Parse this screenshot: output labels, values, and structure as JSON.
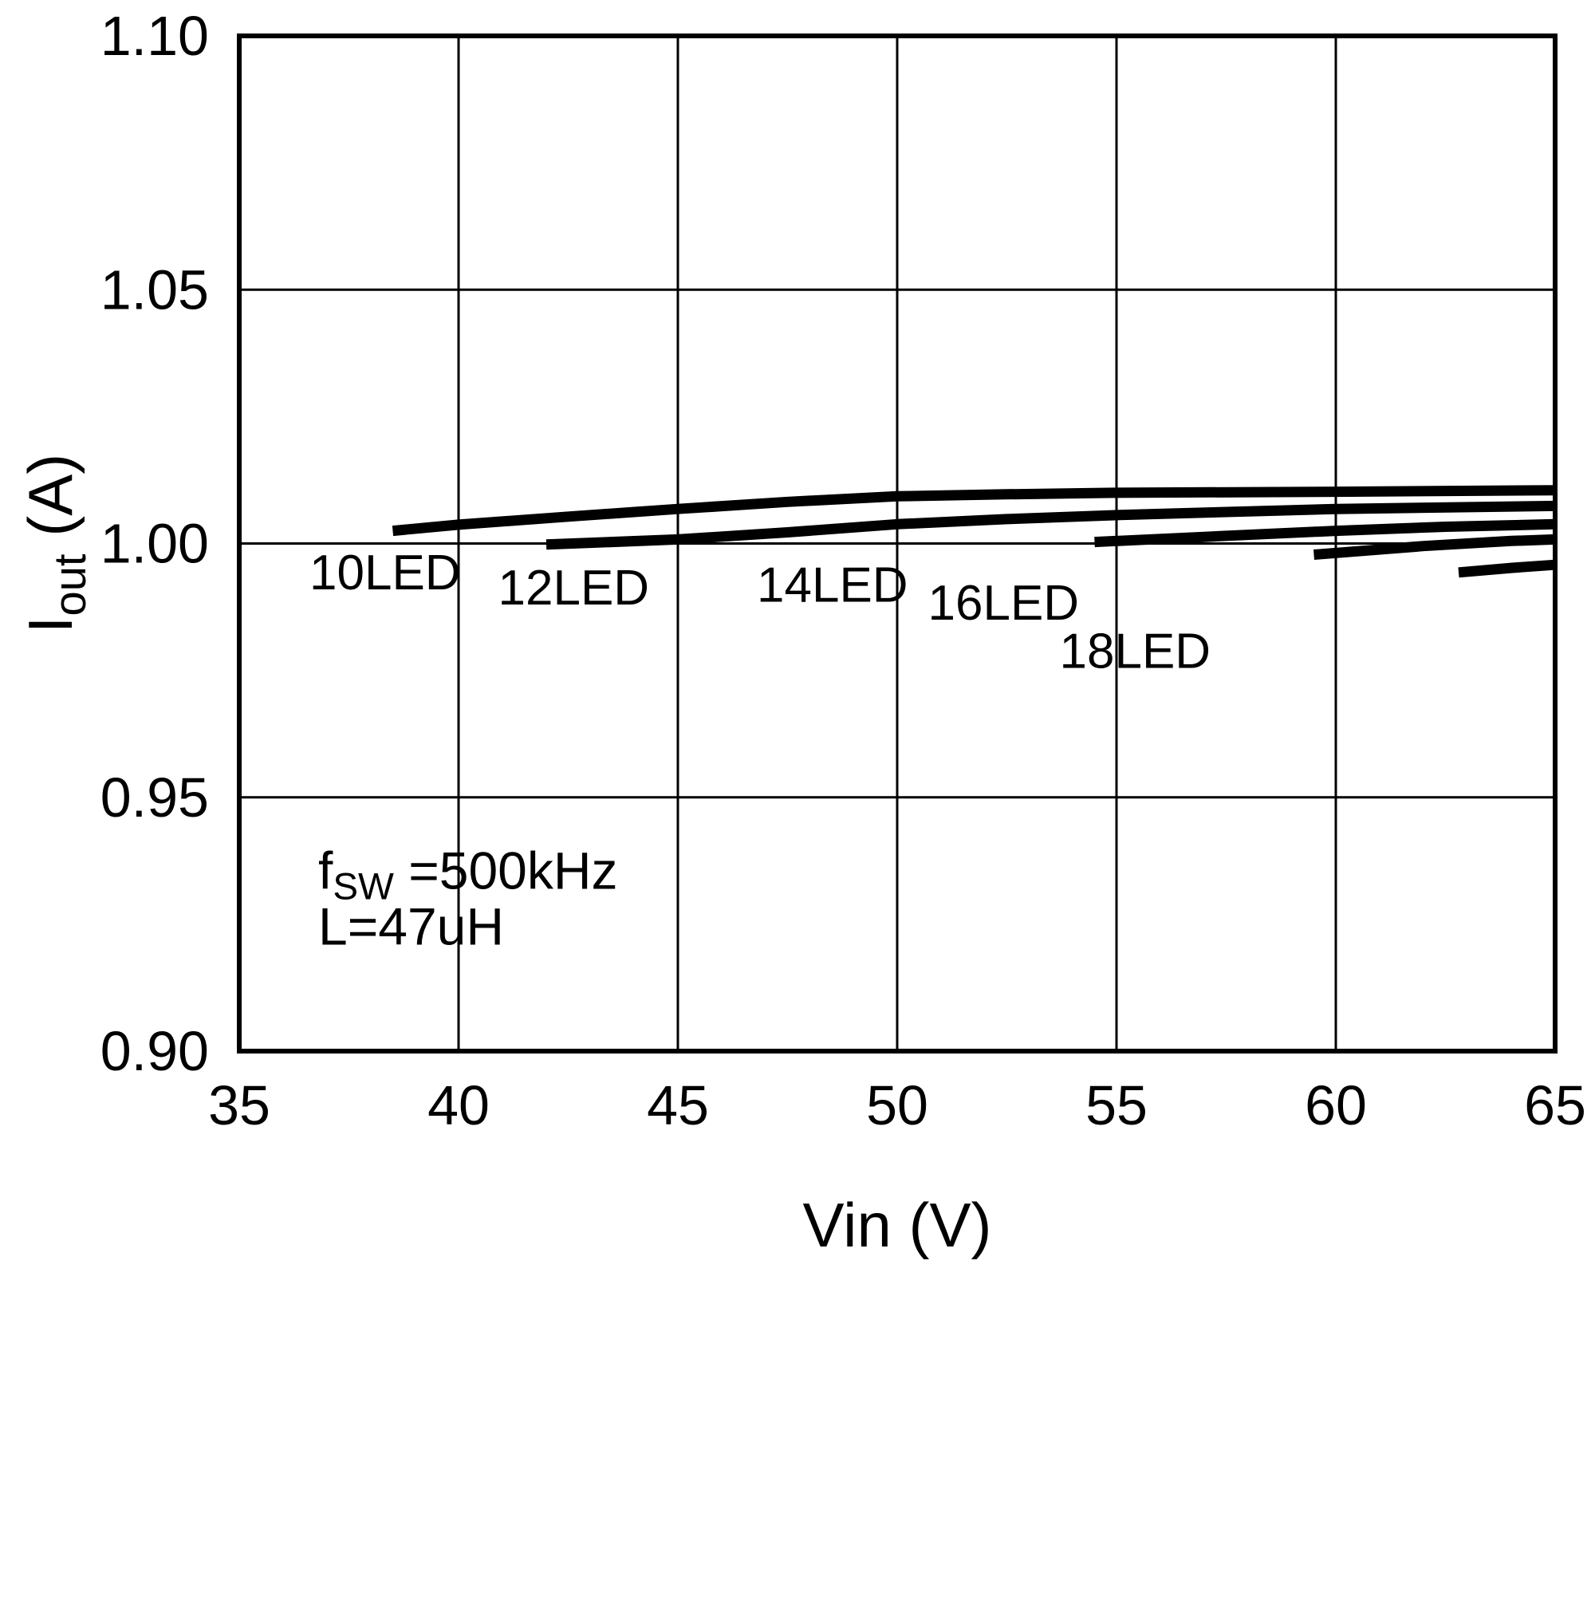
{
  "chart_data": {
    "type": "line",
    "title": "",
    "xlabel": "Vin (V)",
    "ylabel": {
      "pre": "I",
      "sub": "out",
      "post": " (A)"
    },
    "xlim": [
      35,
      65
    ],
    "ylim": [
      0.9,
      1.1
    ],
    "grid": "on",
    "legend_position": "inline-labels",
    "xticks": {
      "values": [
        35,
        40,
        45,
        50,
        55,
        60,
        65
      ],
      "labels": [
        "35",
        "40",
        "45",
        "50",
        "55",
        "60",
        "65"
      ]
    },
    "yticks": {
      "values": [
        0.9,
        0.95,
        1.0,
        1.05,
        1.1
      ],
      "labels": [
        "0.90",
        "0.95",
        "1.00",
        "1.05",
        "1.10"
      ]
    },
    "annotation": {
      "x": 36.8,
      "lines": [
        {
          "y": 0.932,
          "pre": "f",
          "sub": "SW",
          "post": " =500kHz"
        },
        {
          "y": 0.921,
          "pre": "L=47uH",
          "sub": "",
          "post": ""
        }
      ]
    },
    "line_color": "#000000",
    "series": [
      {
        "name": "10LED",
        "x": [
          38.5,
          40,
          42.5,
          45,
          47.5,
          50,
          52.5,
          55,
          60,
          65
        ],
        "y": [
          1.0025,
          1.0037,
          1.0053,
          1.0068,
          1.0082,
          1.0093,
          1.0097,
          1.01,
          1.0102,
          1.0105
        ],
        "label": {
          "text": "10LED",
          "x": 36.6,
          "y": 0.991
        }
      },
      {
        "name": "12LED",
        "x": [
          42,
          45,
          47.5,
          50,
          52.5,
          55,
          60,
          65
        ],
        "y": [
          0.9998,
          1.0008,
          1.0022,
          1.0038,
          1.0048,
          1.0056,
          1.0068,
          1.0074
        ],
        "label": {
          "text": "12LED",
          "x": 40.9,
          "y": 0.988
        }
      },
      {
        "name": "14LED",
        "x": [
          54.5,
          57,
          60,
          62.5,
          65
        ],
        "y": [
          1.0003,
          1.0013,
          1.0025,
          1.0033,
          1.0038
        ],
        "label": {
          "text": "14LED",
          "x": 46.8,
          "y": 0.9885
        }
      },
      {
        "name": "16LED",
        "x": [
          59.5,
          62,
          64,
          65
        ],
        "y": [
          0.9978,
          0.9995,
          1.0005,
          1.0008
        ],
        "label": {
          "text": "16LED",
          "x": 50.7,
          "y": 0.985
        }
      },
      {
        "name": "18LED",
        "x": [
          62.8,
          64,
          65
        ],
        "y": [
          0.9943,
          0.9952,
          0.9958
        ],
        "label": {
          "text": "18LED",
          "x": 53.7,
          "y": 0.9755
        }
      }
    ]
  }
}
